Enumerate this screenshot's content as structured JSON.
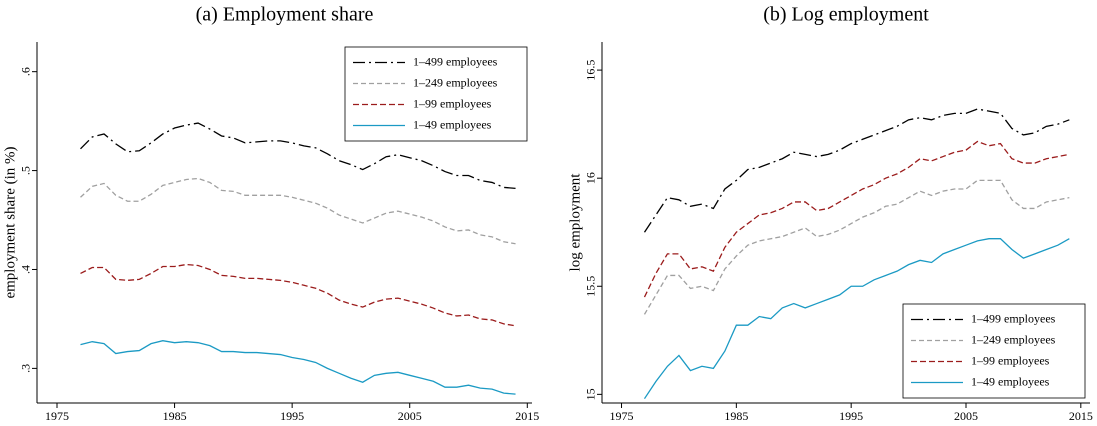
{
  "chart_data": [
    {
      "type": "line",
      "title": "(a) Employment share",
      "y_label": "employment share (in %)",
      "x": [
        1977,
        1978,
        1979,
        1980,
        1981,
        1982,
        1983,
        1984,
        1985,
        1986,
        1987,
        1988,
        1989,
        1990,
        1991,
        1992,
        1993,
        1994,
        1995,
        1996,
        1997,
        1998,
        1999,
        2000,
        2001,
        2002,
        2003,
        2004,
        2005,
        2006,
        2007,
        2008,
        2009,
        2010,
        2011,
        2012,
        2013,
        2014
      ],
      "xlim": [
        1973.3,
        2015.4
      ],
      "xticks": [
        1975,
        1985,
        1995,
        2005,
        2015
      ],
      "ylim": [
        0.265,
        0.63
      ],
      "yticks": [
        {
          "value": 0.3,
          "label": ".3"
        },
        {
          "value": 0.4,
          "label": ".4"
        },
        {
          "value": 0.5,
          "label": ".5"
        },
        {
          "value": 0.6,
          "label": ".6"
        }
      ],
      "legend": "upper right",
      "series": [
        {
          "name": "1–499 employees",
          "color": "#000000",
          "line_style": "longdash-dot",
          "values": [
            0.522,
            0.534,
            0.537,
            0.527,
            0.519,
            0.52,
            0.528,
            0.537,
            0.543,
            0.546,
            0.548,
            0.542,
            0.535,
            0.533,
            0.528,
            0.529,
            0.53,
            0.53,
            0.528,
            0.525,
            0.523,
            0.517,
            0.51,
            0.506,
            0.501,
            0.507,
            0.514,
            0.516,
            0.513,
            0.51,
            0.505,
            0.499,
            0.495,
            0.495,
            0.49,
            0.488,
            0.483,
            0.482
          ]
        },
        {
          "name": "1–249 employees",
          "color": "#a0a0a0",
          "line_style": "shortdash",
          "values": [
            0.473,
            0.484,
            0.487,
            0.475,
            0.469,
            0.469,
            0.476,
            0.485,
            0.488,
            0.491,
            0.492,
            0.488,
            0.48,
            0.479,
            0.475,
            0.475,
            0.475,
            0.475,
            0.473,
            0.47,
            0.467,
            0.462,
            0.455,
            0.451,
            0.447,
            0.452,
            0.457,
            0.459,
            0.456,
            0.453,
            0.449,
            0.443,
            0.439,
            0.44,
            0.435,
            0.433,
            0.428,
            0.426
          ]
        },
        {
          "name": "1–99 employees",
          "color": "#9b1c1c",
          "line_style": "dash",
          "values": [
            0.396,
            0.402,
            0.402,
            0.39,
            0.389,
            0.39,
            0.396,
            0.403,
            0.403,
            0.405,
            0.404,
            0.4,
            0.394,
            0.393,
            0.391,
            0.391,
            0.39,
            0.389,
            0.387,
            0.384,
            0.381,
            0.376,
            0.369,
            0.365,
            0.362,
            0.367,
            0.37,
            0.371,
            0.368,
            0.365,
            0.361,
            0.356,
            0.353,
            0.354,
            0.35,
            0.349,
            0.345,
            0.343
          ]
        },
        {
          "name": "1–49 employees",
          "color": "#1b9ac4",
          "line_style": "solid",
          "values": [
            0.324,
            0.327,
            0.325,
            0.315,
            0.317,
            0.318,
            0.325,
            0.328,
            0.326,
            0.327,
            0.326,
            0.323,
            0.317,
            0.317,
            0.316,
            0.316,
            0.315,
            0.314,
            0.311,
            0.309,
            0.306,
            0.3,
            0.295,
            0.29,
            0.286,
            0.293,
            0.295,
            0.296,
            0.293,
            0.29,
            0.287,
            0.281,
            0.281,
            0.283,
            0.28,
            0.279,
            0.275,
            0.274
          ]
        }
      ]
    },
    {
      "type": "line",
      "title": "(b) Log employment",
      "y_label": "log employment",
      "x": [
        1977,
        1978,
        1979,
        1980,
        1981,
        1982,
        1983,
        1984,
        1985,
        1986,
        1987,
        1988,
        1989,
        1990,
        1991,
        1992,
        1993,
        1994,
        1995,
        1996,
        1997,
        1998,
        1999,
        2000,
        2001,
        2002,
        2003,
        2004,
        2005,
        2006,
        2007,
        2008,
        2009,
        2010,
        2011,
        2012,
        2013,
        2014
      ],
      "xlim": [
        1973.3,
        2015.8
      ],
      "xticks": [
        1975,
        1985,
        1995,
        2005,
        2015
      ],
      "ylim": [
        14.96,
        16.63
      ],
      "yticks": [
        15,
        15.5,
        16,
        16.5
      ],
      "legend": "lower right",
      "series": [
        {
          "name": "1–499 employees",
          "color": "#000000",
          "line_style": "longdash-dot",
          "values": [
            15.75,
            15.83,
            15.91,
            15.9,
            15.87,
            15.88,
            15.86,
            15.95,
            15.99,
            16.04,
            16.05,
            16.07,
            16.09,
            16.12,
            16.11,
            16.1,
            16.11,
            16.13,
            16.16,
            16.18,
            16.2,
            16.22,
            16.24,
            16.27,
            16.28,
            16.27,
            16.29,
            16.3,
            16.3,
            16.32,
            16.31,
            16.3,
            16.23,
            16.2,
            16.21,
            16.24,
            16.25,
            16.27
          ]
        },
        {
          "name": "1–249 employees",
          "color": "#a0a0a0",
          "line_style": "shortdash",
          "values": [
            15.37,
            15.46,
            15.55,
            15.55,
            15.49,
            15.5,
            15.48,
            15.58,
            15.64,
            15.69,
            15.71,
            15.72,
            15.73,
            15.75,
            15.77,
            15.73,
            15.74,
            15.76,
            15.79,
            15.82,
            15.84,
            15.87,
            15.88,
            15.91,
            15.94,
            15.92,
            15.94,
            15.95,
            15.95,
            15.99,
            15.99,
            15.99,
            15.9,
            15.86,
            15.86,
            15.89,
            15.9,
            15.91
          ]
        },
        {
          "name": "1–99 employees",
          "color": "#9b1c1c",
          "line_style": "dash",
          "values": [
            15.45,
            15.56,
            15.65,
            15.65,
            15.58,
            15.59,
            15.57,
            15.68,
            15.75,
            15.79,
            15.83,
            15.84,
            15.86,
            15.89,
            15.89,
            15.85,
            15.86,
            15.89,
            15.92,
            15.95,
            15.97,
            16.0,
            16.02,
            16.05,
            16.09,
            16.08,
            16.1,
            16.12,
            16.13,
            16.17,
            16.15,
            16.16,
            16.09,
            16.07,
            16.07,
            16.09,
            16.1,
            16.11
          ]
        },
        {
          "name": "1–49 employees",
          "color": "#1b9ac4",
          "line_style": "solid",
          "values": [
            14.98,
            15.06,
            15.13,
            15.18,
            15.11,
            15.13,
            15.12,
            15.2,
            15.32,
            15.32,
            15.36,
            15.35,
            15.4,
            15.42,
            15.4,
            15.42,
            15.44,
            15.46,
            15.5,
            15.5,
            15.53,
            15.55,
            15.57,
            15.6,
            15.62,
            15.61,
            15.65,
            15.67,
            15.69,
            15.71,
            15.72,
            15.72,
            15.67,
            15.63,
            15.65,
            15.67,
            15.69,
            15.72
          ]
        }
      ]
    }
  ]
}
